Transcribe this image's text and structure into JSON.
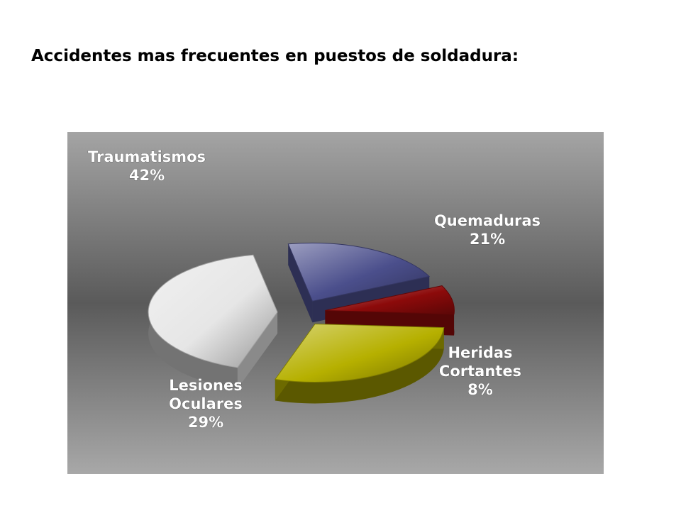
{
  "page": {
    "title": "Accidentes mas frecuentes en puestos de soldadura:"
  },
  "chart_data": {
    "type": "pie",
    "style": "3d-exploded",
    "title": "",
    "background": "gray-gradient",
    "slices": [
      {
        "label_lines": [
          "Traumatismos"
        ],
        "percent_label": "42%",
        "value": 42,
        "color": "#e6e6e6"
      },
      {
        "label_lines": [
          "Quemaduras"
        ],
        "percent_label": "21%",
        "value": 21,
        "color": "#4b4f8c"
      },
      {
        "label_lines": [
          "Heridas",
          "Cortantes"
        ],
        "percent_label": "8%",
        "value": 8,
        "color": "#8c0a0a"
      },
      {
        "label_lines": [
          "Lesiones",
          "Oculares"
        ],
        "percent_label": "29%",
        "value": 29,
        "color": "#b6b000"
      }
    ]
  }
}
